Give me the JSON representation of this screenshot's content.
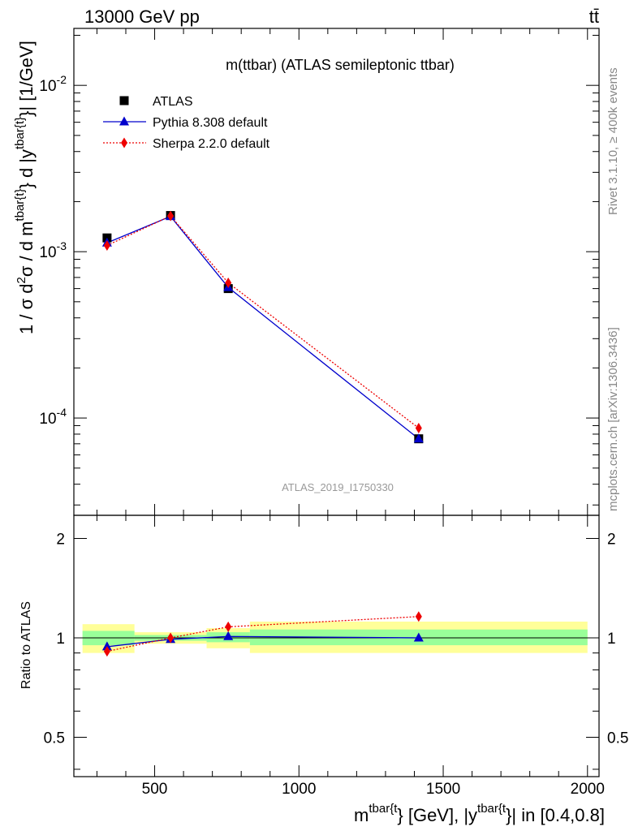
{
  "header": {
    "left": "13000 GeV pp",
    "right": "tt̄"
  },
  "side": {
    "rivet": "Rivet 3.1.10, ≥ 400k events",
    "mcplots": "mcplots.cern.ch [arXiv:1306.3436]"
  },
  "chart_data": [
    {
      "type": "line",
      "title": "m(ttbar) (ATLAS semileptonic ttbar)",
      "analysis_tag": "ATLAS_2019_I1750330",
      "ylabel_parts": {
        "prefix": "1 / σ d",
        "sup1": "2",
        "mid1": "σ / d m",
        "sup2": "tbar{t}",
        "mid2": "} d |y",
        "sup3": "tbar{t}",
        "suffix": "}| [1/GeV]"
      },
      "xlim": [
        220,
        2040
      ],
      "ylim": [
        2.6e-05,
        0.022
      ],
      "yscale": "log",
      "yticks": [
        {
          "value": 0.01,
          "mant": "10",
          "exp": "-2"
        },
        {
          "value": 0.001,
          "mant": "10",
          "exp": "-3"
        },
        {
          "value": 0.0001,
          "mant": "10",
          "exp": "-4"
        }
      ],
      "legend_position": "top-left",
      "series": [
        {
          "name": "ATLAS",
          "color": "#000000",
          "marker": "square",
          "x": [
            335,
            555,
            755,
            1415
          ],
          "y": [
            0.00121,
            0.00165,
            0.0006,
            7.5e-05
          ]
        },
        {
          "name": "Pythia 8.308 default",
          "color": "#0000cc",
          "marker": "triangle",
          "line": "solid",
          "x": [
            335,
            555,
            755,
            1415
          ],
          "y": [
            0.00113,
            0.00163,
            0.00061,
            7.5e-05
          ]
        },
        {
          "name": "Sherpa 2.2.0 default",
          "color": "#ee0000",
          "marker": "diamond",
          "line": "dotted",
          "x": [
            335,
            555,
            755,
            1415
          ],
          "y": [
            0.00109,
            0.00164,
            0.00065,
            8.7e-05
          ]
        }
      ]
    },
    {
      "type": "line",
      "ylabel": "Ratio to ATLAS",
      "xlabel_parts": {
        "prefix": "m",
        "sup1": "tbar{t",
        "mid": "} [GeV], |y",
        "sup2": "tbar{t",
        "suffix": "}| in [0.4,0.8]"
      },
      "xlim": [
        220,
        2040
      ],
      "ylim": [
        0.38,
        2.35
      ],
      "yscale": "log",
      "xticks": [
        500,
        1000,
        1500,
        2000
      ],
      "yticks": [
        0.5,
        1,
        2
      ],
      "bands": [
        {
          "x": [
            250,
            430
          ],
          "inner": [
            0.95,
            1.05
          ],
          "outer": [
            0.9,
            1.1
          ]
        },
        {
          "x": [
            430,
            680
          ],
          "inner": [
            0.98,
            1.02
          ],
          "outer": [
            0.96,
            1.04
          ]
        },
        {
          "x": [
            680,
            830
          ],
          "inner": [
            0.97,
            1.04
          ],
          "outer": [
            0.93,
            1.07
          ]
        },
        {
          "x": [
            830,
            2000
          ],
          "inner": [
            0.95,
            1.06
          ],
          "outer": [
            0.9,
            1.12
          ]
        }
      ],
      "band_colors": {
        "outer": "#ffff99",
        "inner": "#99ff99"
      },
      "series": [
        {
          "name": "Pythia 8.308 default",
          "color": "#0000cc",
          "marker": "triangle",
          "line": "solid",
          "x": [
            335,
            555,
            755,
            1415
          ],
          "y": [
            0.94,
            0.99,
            1.01,
            1.0
          ]
        },
        {
          "name": "Sherpa 2.2.0 default",
          "color": "#ee0000",
          "marker": "diamond",
          "line": "dotted",
          "x": [
            335,
            555,
            755,
            1415
          ],
          "y": [
            0.91,
            1.0,
            1.08,
            1.16
          ]
        }
      ]
    }
  ]
}
